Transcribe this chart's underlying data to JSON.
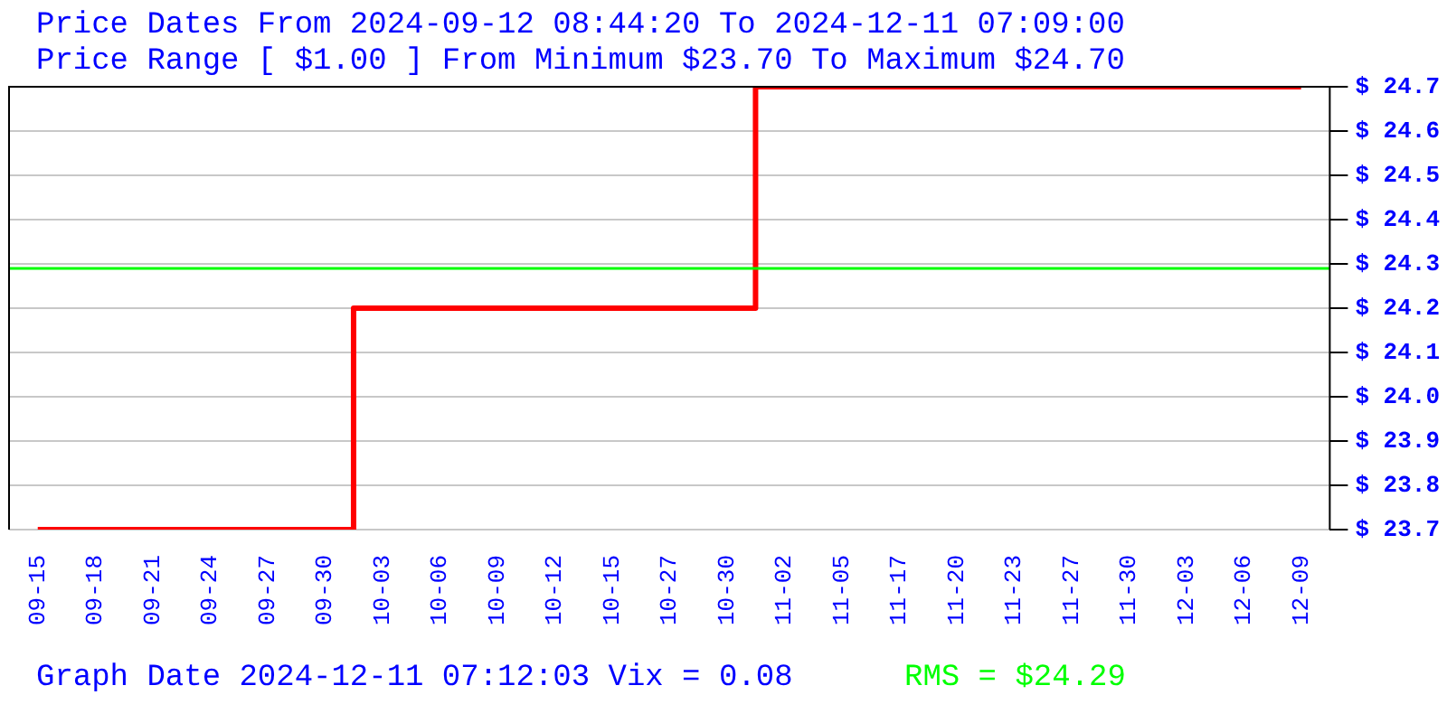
{
  "chart_data": {
    "type": "step",
    "title": "Price Dates From 2024-09-12 08:44:20 To 2024-12-11 07:09:00",
    "subtitle": "Price Range [ $1.00 ] From Minimum $23.70 To Maximum $24.70",
    "categories": [
      "09-15",
      "09-18",
      "09-21",
      "09-24",
      "09-27",
      "09-30",
      "10-03",
      "10-06",
      "10-09",
      "10-12",
      "10-15",
      "10-27",
      "10-30",
      "11-02",
      "11-05",
      "11-17",
      "11-20",
      "11-23",
      "11-27",
      "11-30",
      "12-03",
      "12-06",
      "12-09"
    ],
    "series": [
      {
        "color": "#ff0000",
        "values": [
          23.7,
          23.7,
          23.7,
          23.7,
          23.7,
          23.7,
          24.2,
          24.2,
          24.2,
          24.2,
          24.2,
          24.2,
          24.2,
          24.7,
          24.7,
          24.7,
          24.7,
          24.7,
          24.7,
          24.7,
          24.7,
          24.7,
          24.7
        ]
      }
    ],
    "ylim": [
      23.7,
      24.7
    ],
    "yticks": [
      {
        "value": 23.7,
        "label": "$ 23.7"
      },
      {
        "value": 23.8,
        "label": "$ 23.8"
      },
      {
        "value": 23.9,
        "label": "$ 23.9"
      },
      {
        "value": 24.0,
        "label": "$ 24.0"
      },
      {
        "value": 24.1,
        "label": "$ 24.1"
      },
      {
        "value": 24.2,
        "label": "$ 24.2"
      },
      {
        "value": 24.3,
        "label": "$ 24.3"
      },
      {
        "value": 24.4,
        "label": "$ 24.4"
      },
      {
        "value": 24.5,
        "label": "$ 24.5"
      },
      {
        "value": 24.6,
        "label": "$ 24.6"
      },
      {
        "value": 24.7,
        "label": "$ 24.7"
      }
    ],
    "ref_lines": [
      {
        "axis": "y",
        "value": 24.29,
        "label": "RMS = $24.29",
        "color": "#00ff00"
      }
    ],
    "annotations": [
      "Graph Date 2024-12-11 07:12:03 Vix = 0.08"
    ],
    "grid": "y",
    "legend": false
  }
}
